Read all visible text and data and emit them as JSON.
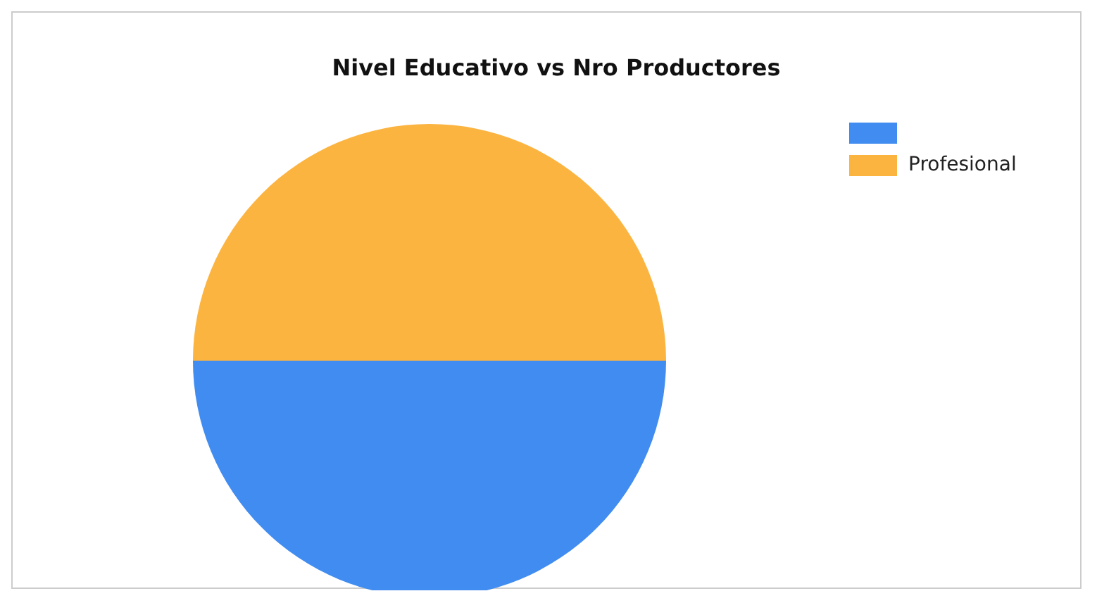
{
  "chart_data": {
    "type": "pie",
    "title": "Nivel Educativo vs Nro Productores",
    "categories": [
      null,
      "Profesional"
    ],
    "values": [
      50,
      50
    ],
    "colors": [
      "#418cf0",
      "#fcb441"
    ],
    "legend": "top right"
  }
}
